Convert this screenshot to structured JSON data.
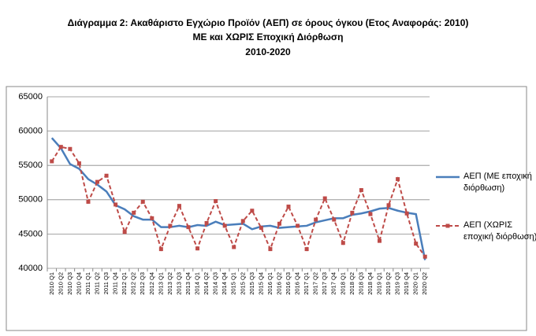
{
  "chart_data": {
    "type": "line",
    "title": [
      "Διάγραμμα 2: Ακαθάριστο Εγχώριο Προϊόν (ΑΕΠ) σε όρους όγκου (Ετος Αναφοράς: 2010)",
      "ΜΕ και ΧΩΡΙΣ Εποχική Διόρθωση",
      "2010-2020"
    ],
    "categories": [
      "2010 Q1",
      "2010 Q2",
      "2010 Q3",
      "2010 Q4",
      "2011 Q1",
      "2011 Q2",
      "2011 Q3",
      "2011 Q4",
      "2012 Q1",
      "2012 Q2",
      "2012 Q3",
      "2012 Q4",
      "2013 Q1",
      "2013 Q2",
      "2013 Q3",
      "2013 Q4",
      "2014 Q1",
      "2014 Q2",
      "2014 Q3",
      "2014 Q4",
      "2015 Q1",
      "2015 Q2",
      "2015 Q3",
      "2015 Q4",
      "2016 Q1",
      "2016 Q2",
      "2016 Q3",
      "2016 Q4",
      "2017 Q1",
      "2017 Q2",
      "2017 Q3",
      "2017 Q4",
      "2018 Q1",
      "2018 Q2",
      "2018 Q3",
      "2018 Q4",
      "2019 Q1",
      "2019 Q2",
      "2019 Q3",
      "2019 Q4",
      "2020 Q1",
      "2020 Q2"
    ],
    "series": [
      {
        "name": "ΑΕΠ (ΜΕ εποχική διόρθωση)",
        "color": "#4a7ebb",
        "dashed": false,
        "markers": false,
        "values": [
          59000,
          57500,
          55200,
          54500,
          53000,
          52200,
          51200,
          49200,
          48600,
          47600,
          47100,
          47100,
          46000,
          46000,
          46200,
          46000,
          46300,
          46200,
          46800,
          46300,
          46400,
          46500,
          45700,
          46100,
          46200,
          45900,
          46000,
          46100,
          46200,
          46700,
          47000,
          47300,
          47300,
          47800,
          48000,
          48300,
          48700,
          48800,
          48400,
          48100,
          47900,
          41200
        ]
      },
      {
        "name": "ΑΕΠ (ΧΩΡΙΣ εποχική διόρθωση)",
        "color": "#be4b48",
        "dashed": true,
        "markers": true,
        "values": [
          55600,
          57700,
          57400,
          55300,
          49700,
          52600,
          53500,
          49300,
          45300,
          48100,
          49700,
          47300,
          42800,
          46200,
          49100,
          46000,
          42900,
          46600,
          49800,
          46200,
          43100,
          46900,
          48400,
          45900,
          42800,
          46500,
          49000,
          46200,
          42800,
          47100,
          50200,
          47100,
          43700,
          48100,
          51400,
          47900,
          44000,
          49200,
          53000,
          48000,
          43600,
          41700
        ]
      }
    ],
    "ylim": [
      40000,
      65000
    ],
    "yticks": [
      40000,
      45000,
      50000,
      55000,
      60000,
      65000
    ],
    "grid": true,
    "legend": "right"
  }
}
